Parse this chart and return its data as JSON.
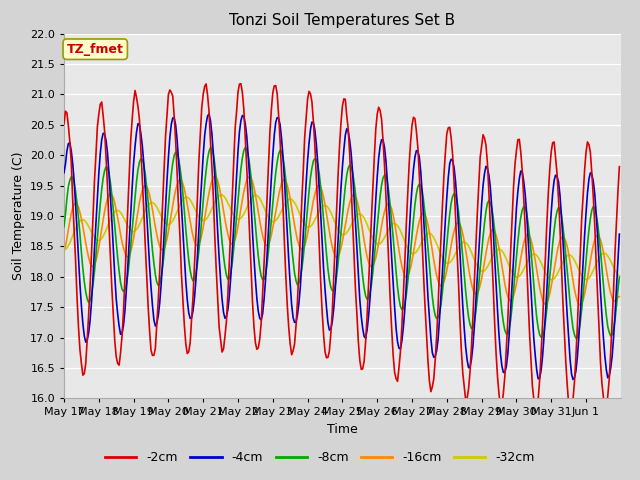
{
  "title": "Tonzi Soil Temperatures Set B",
  "xlabel": "Time",
  "ylabel": "Soil Temperature (C)",
  "ylim": [
    16.0,
    22.0
  ],
  "yticks": [
    16.0,
    16.5,
    17.0,
    17.5,
    18.0,
    18.5,
    19.0,
    19.5,
    20.0,
    20.5,
    21.0,
    21.5,
    22.0
  ],
  "xtick_labels": [
    "May 17",
    "May 18",
    "May 19",
    "May 20",
    "May 21",
    "May 22",
    "May 23",
    "May 24",
    "May 25",
    "May 26",
    "May 27",
    "May 28",
    "May 29",
    "May 30",
    "May 31",
    "Jun 1"
  ],
  "legend_labels": [
    "-2cm",
    "-4cm",
    "-8cm",
    "-16cm",
    "-32cm"
  ],
  "legend_colors": [
    "#dd0000",
    "#0000cc",
    "#00aa00",
    "#ff8800",
    "#cccc00"
  ],
  "line_width": 1.2,
  "annotation_text": "TZ_fmet",
  "annotation_color": "#cc0000",
  "annotation_bg": "#ffffcc",
  "annotation_edge": "#999900",
  "fig_bg": "#d4d4d4",
  "plot_bg": "#e8e8e8",
  "grid_color": "#ffffff",
  "title_fontsize": 11,
  "label_fontsize": 9,
  "tick_fontsize": 8
}
